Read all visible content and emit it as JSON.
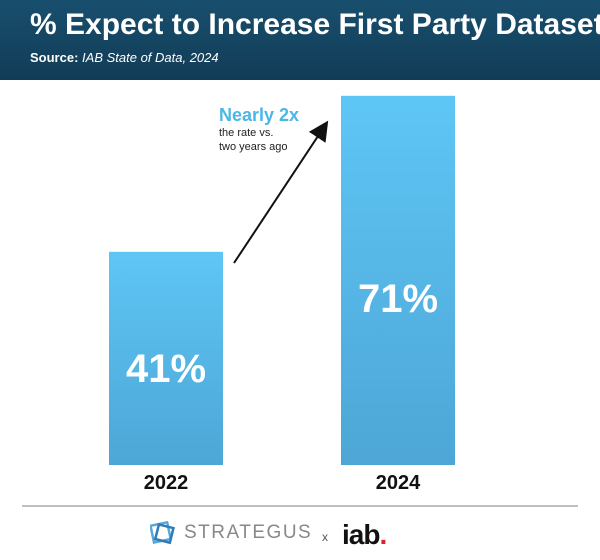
{
  "header": {
    "title": "% Expect to Increase First Party Datasets",
    "source_label": "Source:",
    "source_text": "IAB State of Data, 2024"
  },
  "chart_data": {
    "type": "bar",
    "title": "% Expect to Increase First Party Datasets",
    "categories": [
      "2022",
      "2024"
    ],
    "values": [
      41,
      71
    ],
    "value_labels": [
      "41%",
      "71%"
    ],
    "unit": "%",
    "grid": false,
    "colors": {
      "bar_top": "#5ec6f5",
      "bar_bottom": "#4da6d6",
      "value_text": "#ffffff"
    },
    "annotation": {
      "headline": "Nearly 2x",
      "line1": "the rate vs.",
      "line2": "two years ago",
      "headline_color": "#4bb6e8"
    }
  },
  "footer": {
    "brand_left": "STRATEGUS",
    "separator": "x",
    "brand_right": "iab",
    "brand_right_dot": "."
  }
}
